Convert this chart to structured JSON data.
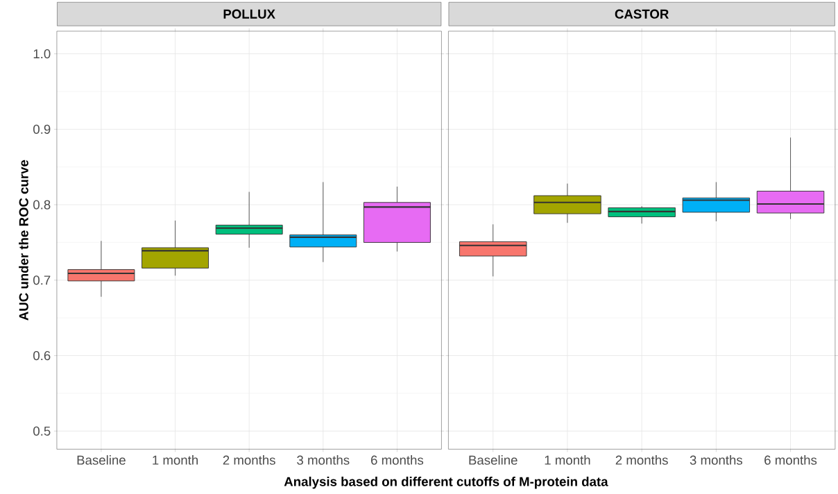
{
  "chart_data": [
    {
      "type": "box",
      "title": "POLLUX",
      "ylabel": "AUC under the ROC curve",
      "xlabel": "Analysis based on different cutoffs of M-protein data",
      "categories": [
        "Baseline",
        "1 month",
        "2 months",
        "3 months",
        "6 months"
      ],
      "colors": [
        "#f8766d",
        "#a3a500",
        "#00bf7d",
        "#00b0f6",
        "#e76bf3"
      ],
      "boxes": [
        {
          "low": 0.678,
          "q1": 0.699,
          "median": 0.709,
          "q3": 0.714,
          "high": 0.752
        },
        {
          "low": 0.706,
          "q1": 0.716,
          "median": 0.739,
          "q3": 0.743,
          "high": 0.779
        },
        {
          "low": 0.743,
          "q1": 0.761,
          "median": 0.769,
          "q3": 0.773,
          "high": 0.817
        },
        {
          "low": 0.724,
          "q1": 0.744,
          "median": 0.757,
          "q3": 0.76,
          "high": 0.83
        },
        {
          "low": 0.738,
          "q1": 0.75,
          "median": 0.797,
          "q3": 0.803,
          "high": 0.824
        }
      ],
      "ylim": [
        0.476,
        1.03
      ],
      "yticks": [
        {
          "value": 0.5,
          "label": "0.5"
        },
        {
          "value": 0.6,
          "label": "0.6"
        },
        {
          "value": 0.7,
          "label": "0.7"
        },
        {
          "value": 0.8,
          "label": "0.8"
        },
        {
          "value": 0.9,
          "label": "0.9"
        },
        {
          "value": 1.0,
          "label": "1.0"
        }
      ],
      "grid": true
    },
    {
      "type": "box",
      "title": "CASTOR",
      "categories": [
        "Baseline",
        "1 month",
        "2 months",
        "3 months",
        "6 months"
      ],
      "colors": [
        "#f8766d",
        "#a3a500",
        "#00bf7d",
        "#00b0f6",
        "#e76bf3"
      ],
      "boxes": [
        {
          "low": 0.705,
          "q1": 0.732,
          "median": 0.746,
          "q3": 0.751,
          "high": 0.774
        },
        {
          "low": 0.776,
          "q1": 0.788,
          "median": 0.803,
          "q3": 0.812,
          "high": 0.828
        },
        {
          "low": 0.775,
          "q1": 0.784,
          "median": 0.791,
          "q3": 0.796,
          "high": 0.798
        },
        {
          "low": 0.778,
          "q1": 0.79,
          "median": 0.806,
          "q3": 0.809,
          "high": 0.83
        },
        {
          "low": 0.781,
          "q1": 0.789,
          "median": 0.801,
          "q3": 0.818,
          "high": 0.889
        }
      ],
      "ylim": [
        0.476,
        1.03
      ],
      "yticks": [
        0.5,
        0.6,
        0.7,
        0.8,
        0.9,
        1.0
      ],
      "grid": true,
      "tick_labels": "x"
    }
  ]
}
